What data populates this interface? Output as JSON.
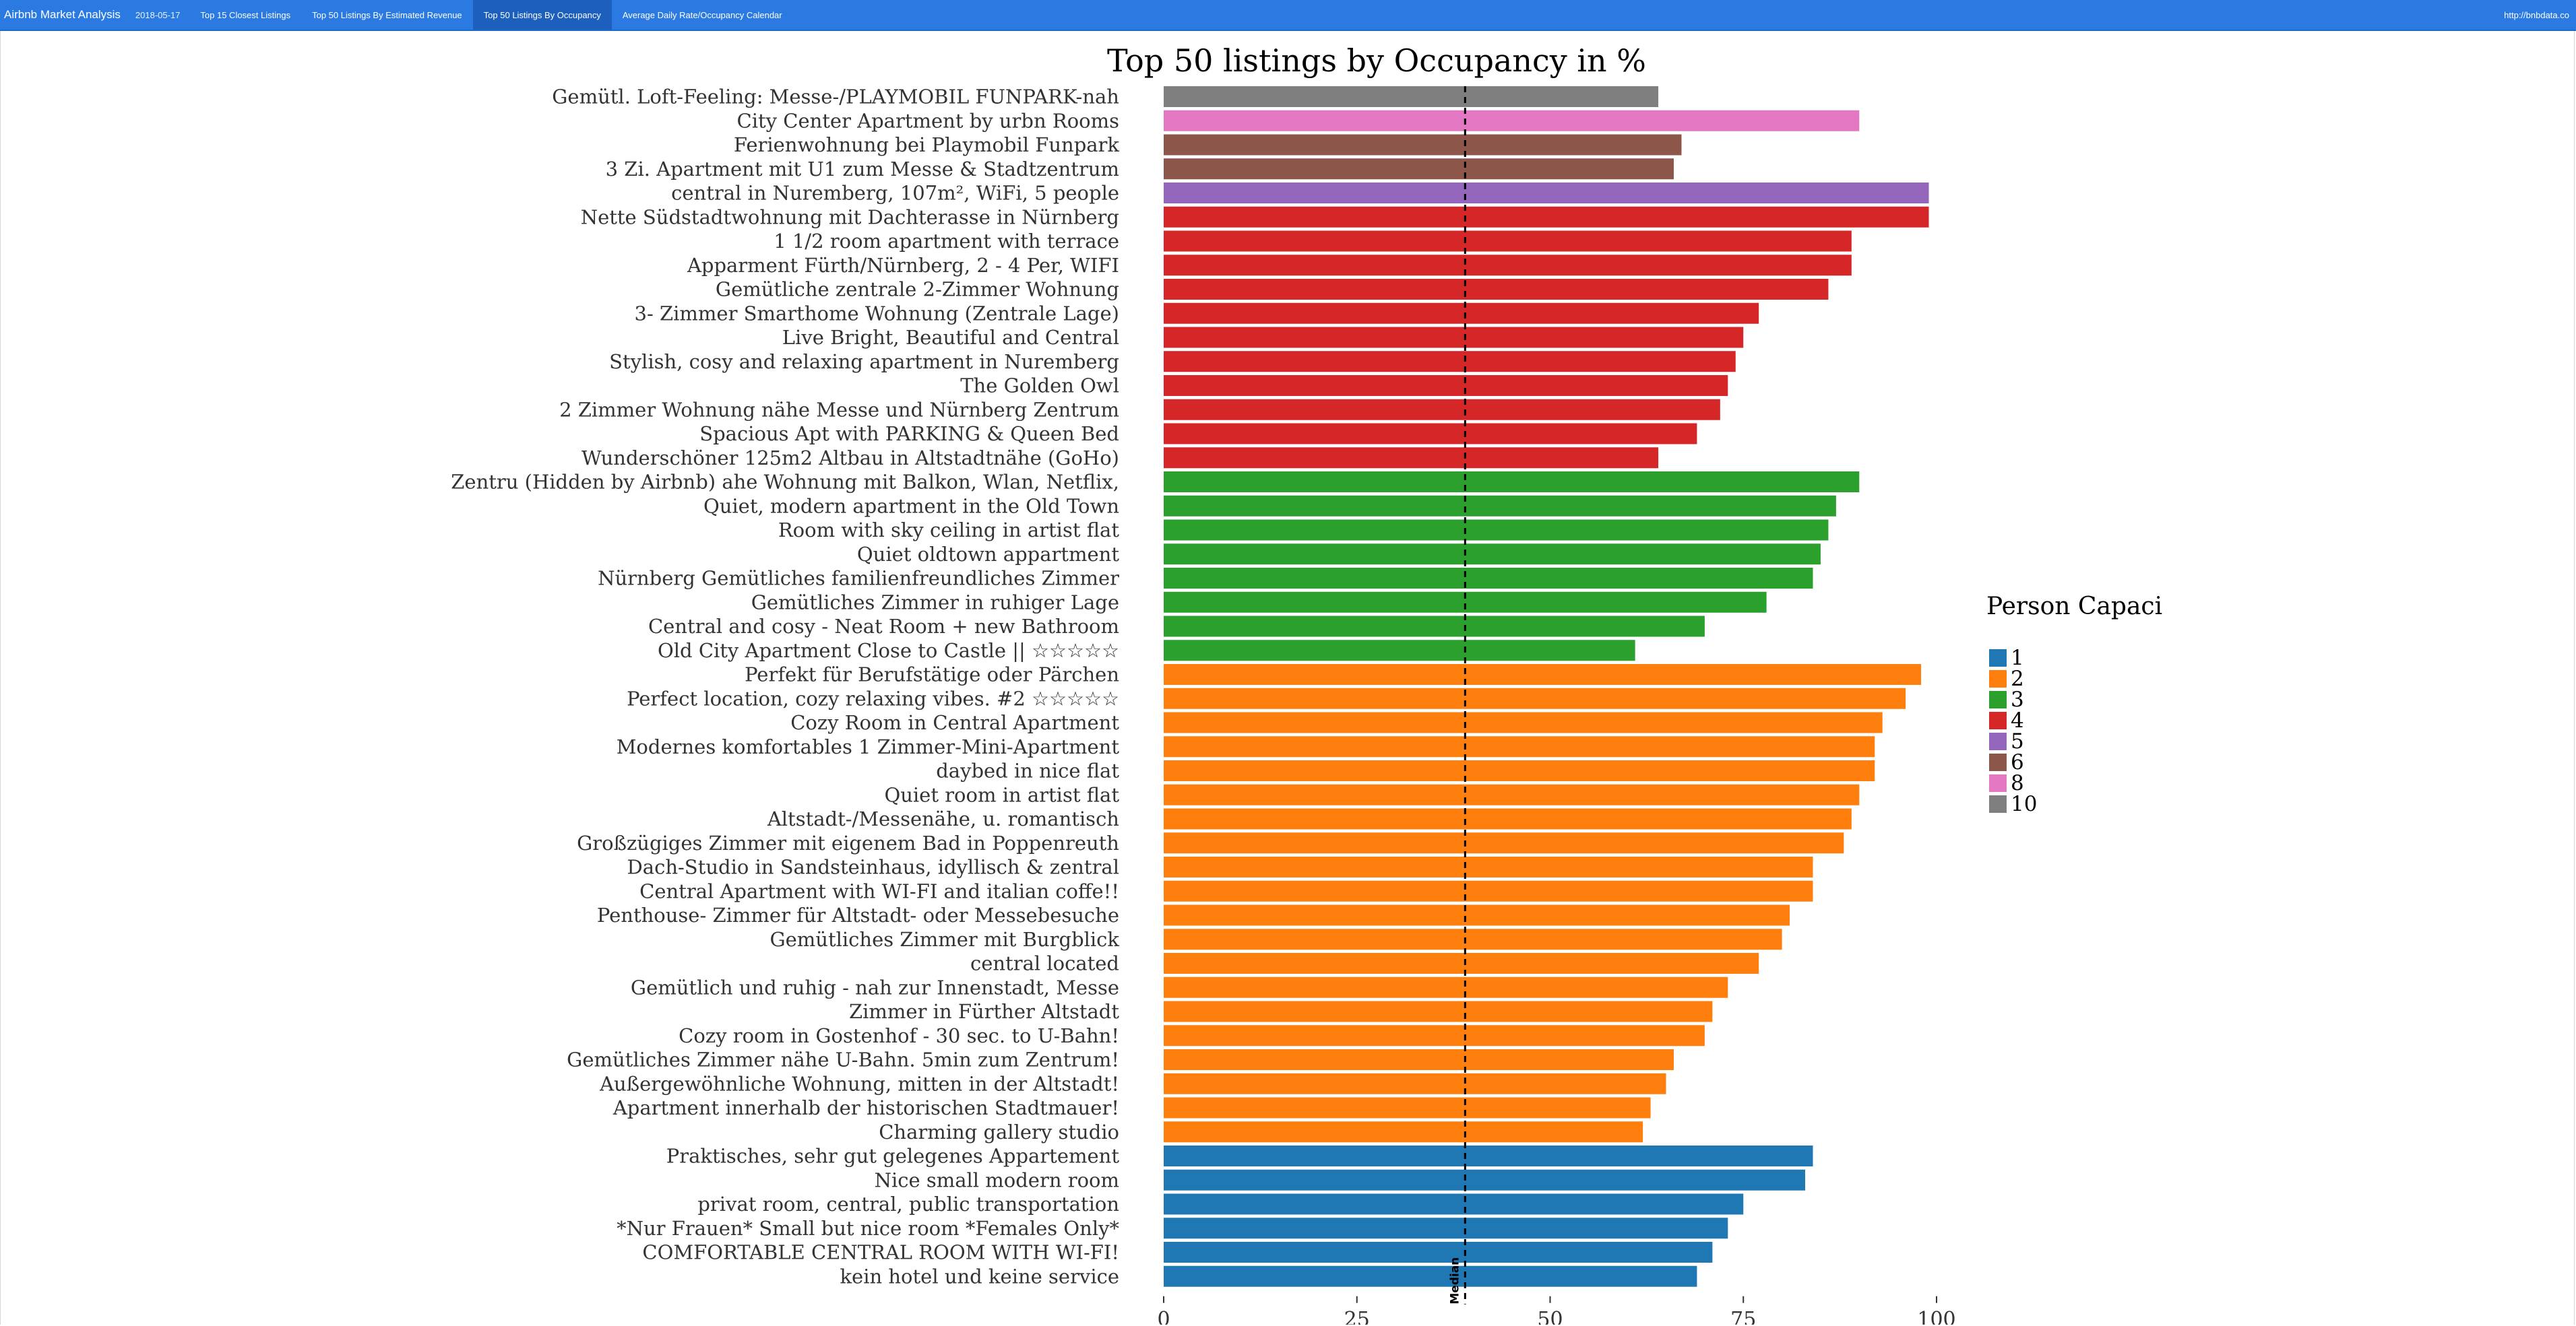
{
  "navbar": {
    "brand": "Airbnb Market Analysis",
    "date": "2018-05-17",
    "tabs": [
      {
        "label": "Top 15 Closest Listings",
        "active": false
      },
      {
        "label": "Top 50 Listings By Estimated Revenue",
        "active": false
      },
      {
        "label": "Top 50 Listings By Occupancy",
        "active": true
      },
      {
        "label": "Average Daily Rate/Occupancy Calendar",
        "active": false
      }
    ],
    "url": "http://bnbdata.co",
    "colors": {
      "bar": "#2a7ae2",
      "active_tab": "#1c5fbd"
    }
  },
  "chart_data": {
    "type": "bar",
    "orientation": "horizontal",
    "title": "Top 50 listings by Occupancy in %",
    "xlabel": "",
    "ylabel": "",
    "xlim": [
      0,
      100
    ],
    "xticks": [
      0,
      25,
      50,
      75,
      100
    ],
    "grid": false,
    "median": {
      "value": 39,
      "label": "Median"
    },
    "legend": {
      "title": "Person Capaci",
      "position": "right",
      "entries": [
        {
          "label": "1",
          "color": "#1f77b4"
        },
        {
          "label": "2",
          "color": "#ff7f0e"
        },
        {
          "label": "3",
          "color": "#2ca02c"
        },
        {
          "label": "4",
          "color": "#d62728"
        },
        {
          "label": "5",
          "color": "#9467bd"
        },
        {
          "label": "6",
          "color": "#8c564b"
        },
        {
          "label": "8",
          "color": "#e377c2"
        },
        {
          "label": "10",
          "color": "#7f7f7f"
        }
      ]
    },
    "bars": [
      {
        "label": "Gemütl. Loft-Feeling: Messe-/PLAYMOBIL FUNPARK-nah",
        "value": 64,
        "capacity": "10"
      },
      {
        "label": "City Center Apartment by urbn Rooms",
        "value": 90,
        "capacity": "8"
      },
      {
        "label": "Ferienwohnung bei Playmobil Funpark",
        "value": 67,
        "capacity": "6"
      },
      {
        "label": "3 Zi. Apartment mit U1 zum Messe & Stadtzentrum",
        "value": 66,
        "capacity": "6"
      },
      {
        "label": "central in Nuremberg, 107m², WiFi, 5 people",
        "value": 99,
        "capacity": "5"
      },
      {
        "label": "Nette Südstadtwohnung mit Dachterasse in Nürnberg",
        "value": 99,
        "capacity": "4"
      },
      {
        "label": "1 1/2 room apartment with terrace",
        "value": 89,
        "capacity": "4"
      },
      {
        "label": "Apparment Fürth/Nürnberg,  2 - 4 Per, WIFI",
        "value": 89,
        "capacity": "4"
      },
      {
        "label": "Gemütliche zentrale 2-Zimmer Wohnung",
        "value": 86,
        "capacity": "4"
      },
      {
        "label": "3- Zimmer Smarthome Wohnung (Zentrale Lage)",
        "value": 77,
        "capacity": "4"
      },
      {
        "label": "Live Bright, Beautiful and Central",
        "value": 75,
        "capacity": "4"
      },
      {
        "label": "Stylish, cosy and relaxing apartment in Nuremberg",
        "value": 74,
        "capacity": "4"
      },
      {
        "label": "The Golden Owl",
        "value": 73,
        "capacity": "4"
      },
      {
        "label": "2 Zimmer Wohnung nähe Messe und Nürnberg Zentrum",
        "value": 72,
        "capacity": "4"
      },
      {
        "label": "Spacious Apt with PARKING & Queen Bed",
        "value": 69,
        "capacity": "4"
      },
      {
        "label": "Wunderschöner 125m2 Altbau in Altstadtnähe (GoHo)",
        "value": 64,
        "capacity": "4"
      },
      {
        "label": "Zentru (Hidden by Airbnb) ahe Wohnung mit Balkon, Wlan, Netflix,",
        "value": 90,
        "capacity": "3"
      },
      {
        "label": "Quiet, modern apartment in the Old Town",
        "value": 87,
        "capacity": "3"
      },
      {
        "label": "Room with sky ceiling in artist flat",
        "value": 86,
        "capacity": "3"
      },
      {
        "label": "Quiet oldtown appartment",
        "value": 85,
        "capacity": "3"
      },
      {
        "label": "Nürnberg Gemütliches familienfreundliches Zimmer",
        "value": 84,
        "capacity": "3"
      },
      {
        "label": "Gemütliches Zimmer in ruhiger Lage",
        "value": 78,
        "capacity": "3"
      },
      {
        "label": "Central and cosy -  Neat Room +  new Bathroom",
        "value": 70,
        "capacity": "3"
      },
      {
        "label": "Old City Apartment Close to Castle || ☆☆☆☆☆",
        "value": 61,
        "capacity": "3"
      },
      {
        "label": "Perfekt für Berufstätige oder Pärchen",
        "value": 98,
        "capacity": "2"
      },
      {
        "label": "Perfect location, cozy relaxing vibes. #2 ☆☆☆☆☆",
        "value": 96,
        "capacity": "2"
      },
      {
        "label": "Cozy Room in Central Apartment",
        "value": 93,
        "capacity": "2"
      },
      {
        "label": "Modernes komfortables 1 Zimmer-Mini-Apartment",
        "value": 92,
        "capacity": "2"
      },
      {
        "label": "daybed in nice flat",
        "value": 92,
        "capacity": "2"
      },
      {
        "label": "Quiet room in artist flat",
        "value": 90,
        "capacity": "2"
      },
      {
        "label": "Altstadt-/Messenähe, u. romantisch",
        "value": 89,
        "capacity": "2"
      },
      {
        "label": "Großzügiges Zimmer mit eigenem Bad in Poppenreuth",
        "value": 88,
        "capacity": "2"
      },
      {
        "label": "Dach-Studio in Sandsteinhaus, idyllisch & zentral",
        "value": 84,
        "capacity": "2"
      },
      {
        "label": "Central Apartment with WI-FI and italian coffe!!",
        "value": 84,
        "capacity": "2"
      },
      {
        "label": "Penthouse- Zimmer für Altstadt- oder Messebesuche",
        "value": 81,
        "capacity": "2"
      },
      {
        "label": "Gemütliches Zimmer mit Burgblick",
        "value": 80,
        "capacity": "2"
      },
      {
        "label": "central located",
        "value": 77,
        "capacity": "2"
      },
      {
        "label": "Gemütlich und ruhig - nah zur Innenstadt, Messe",
        "value": 73,
        "capacity": "2"
      },
      {
        "label": "Zimmer in Fürther Altstadt",
        "value": 71,
        "capacity": "2"
      },
      {
        "label": "Cozy room in Gostenhof - 30 sec. to U-Bahn!",
        "value": 70,
        "capacity": "2"
      },
      {
        "label": "Gemütliches Zimmer nähe U-Bahn. 5min zum Zentrum!",
        "value": 66,
        "capacity": "2"
      },
      {
        "label": "Außergewöhnliche Wohnung, mitten in der Altstadt!",
        "value": 65,
        "capacity": "2"
      },
      {
        "label": "Apartment innerhalb der historischen Stadtmauer!",
        "value": 63,
        "capacity": "2"
      },
      {
        "label": "Charming gallery studio",
        "value": 62,
        "capacity": "2"
      },
      {
        "label": "Praktisches, sehr gut gelegenes Appartement",
        "value": 84,
        "capacity": "1"
      },
      {
        "label": "Nice small modern room",
        "value": 83,
        "capacity": "1"
      },
      {
        "label": "privat room, central, public transportation",
        "value": 75,
        "capacity": "1"
      },
      {
        "label": "*Nur Frauen* Small but nice room *Females Only*",
        "value": 73,
        "capacity": "1"
      },
      {
        "label": "COMFORTABLE CENTRAL ROOM WITH WI-FI!",
        "value": 71,
        "capacity": "1"
      },
      {
        "label": "kein hotel und keine service",
        "value": 69,
        "capacity": "1"
      }
    ]
  }
}
